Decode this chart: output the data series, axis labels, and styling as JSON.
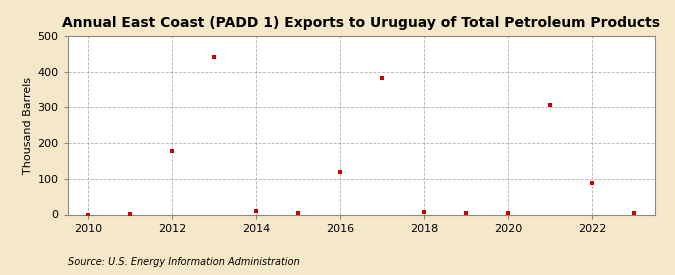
{
  "title": "Annual East Coast (PADD 1) Exports to Uruguay of Total Petroleum Products",
  "ylabel": "Thousand Barrels",
  "source": "Source: U.S. Energy Information Administration",
  "figure_bg": "#f5e8c8",
  "plot_bg": "#ffffff",
  "years": [
    2010,
    2011,
    2012,
    2013,
    2014,
    2015,
    2016,
    2017,
    2018,
    2019,
    2020,
    2021,
    2022,
    2023
  ],
  "values": [
    0,
    2,
    178,
    441,
    10,
    5,
    120,
    382,
    8,
    5,
    3,
    305,
    88,
    3
  ],
  "marker_color": "#cc0000",
  "marker": "s",
  "marker_size": 3.5,
  "xlim": [
    2009.5,
    2023.5
  ],
  "ylim": [
    0,
    500
  ],
  "yticks": [
    0,
    100,
    200,
    300,
    400,
    500
  ],
  "xticks": [
    2010,
    2012,
    2014,
    2016,
    2018,
    2020,
    2022
  ],
  "grid_color": "#aaaaaa",
  "title_fontsize": 10,
  "axis_label_fontsize": 8,
  "tick_fontsize": 8,
  "source_fontsize": 7
}
